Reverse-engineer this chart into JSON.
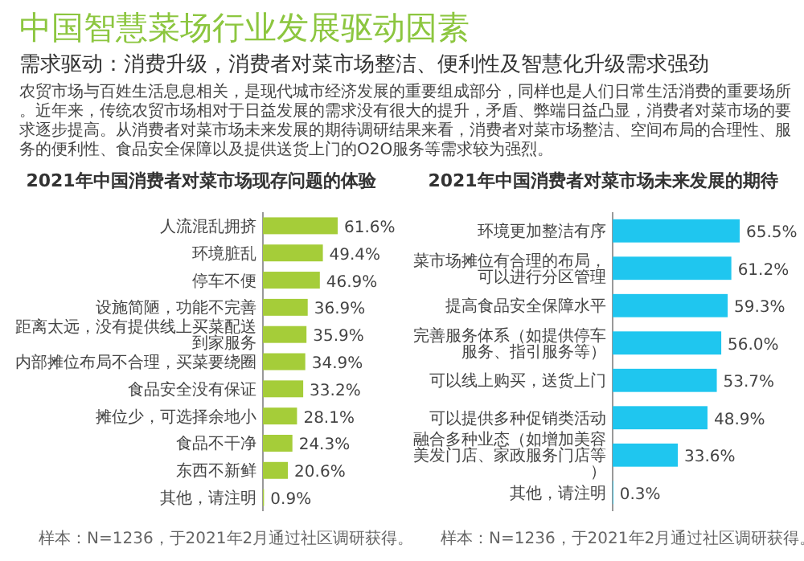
{
  "chart_data": [
    {
      "type": "other",
      "title": "中国智慧菜场行业发展驱动因素",
      "subtitle": "需求驱动：消费升级，消费者对菜市场整洁、便利性及智慧化升级需求强劲",
      "annotations": [
        "农贸市场与百姓生活息息相关，是现代城市经济发展的重要组成部分，同样也是人们日常生活消费的重要场所。近年来，传统农贸市场相对于日益发展的需求没有很大的提升，矛盾、弊端日益凸显，消费者对菜市场的要求逐步提高。从消费者对菜市场未来发展的期待调研结果来看，消费者对菜市场整洁、空间布局的合理性、服务的便利性、食品安全保障以及提供送货上门的O2O服务等需求较为强烈。"
      ]
    },
    {
      "type": "bar",
      "orientation": "horizontal",
      "title": "2021年中国消费者对菜市场现存问题的体验",
      "color": "#a5cd39",
      "categories": [
        "人流混乱拥挤",
        "环境脏乱",
        "停车不便",
        "设施简陋，功能不完善",
        "距离太远，没有提供线上买菜配送到家服务",
        "内部摊位布局不合理，买菜要绕圈",
        "食品安全没有保证",
        "摊位少，可选择余地小",
        "食品不干净",
        "东西不新鲜",
        "其他，请注明"
      ],
      "values": [
        61.6,
        49.4,
        46.9,
        36.9,
        35.9,
        34.9,
        33.2,
        28.1,
        24.3,
        20.6,
        0.9
      ],
      "value_labels": [
        "61.6%",
        "49.4%",
        "46.9%",
        "36.9%",
        "35.9%",
        "34.9%",
        "33.2%",
        "28.1%",
        "24.3%",
        "20.6%",
        "0.9%"
      ],
      "annotations": [
        "样本：N=1236，于2021年2月通过社区调研获得。"
      ]
    },
    {
      "type": "bar",
      "orientation": "horizontal",
      "title": "2021年中国消费者对菜市场未来发展的期待",
      "color": "#1fc6ef",
      "categories": [
        "环境更加整洁有序",
        "菜市场摊位有合理的布局，可以进行分区管理",
        "提高食品安全保障水平",
        "完善服务体系（如提供停车服务、指引服务等）",
        "可以线上购买，送货上门",
        "可以提供多种促销类活动",
        "融合多种业态（如增加美容美发门店、家政服务门店等）",
        "其他，请注明"
      ],
      "values": [
        65.5,
        61.2,
        59.3,
        56.0,
        53.7,
        48.9,
        33.6,
        0.3
      ],
      "value_labels": [
        "65.5%",
        "61.2%",
        "59.3%",
        "56.0%",
        "53.7%",
        "48.9%",
        "33.6%",
        "0.3%"
      ],
      "annotations": [
        "样本：N=1236，于2021年2月通过社区调研获得。"
      ]
    }
  ]
}
